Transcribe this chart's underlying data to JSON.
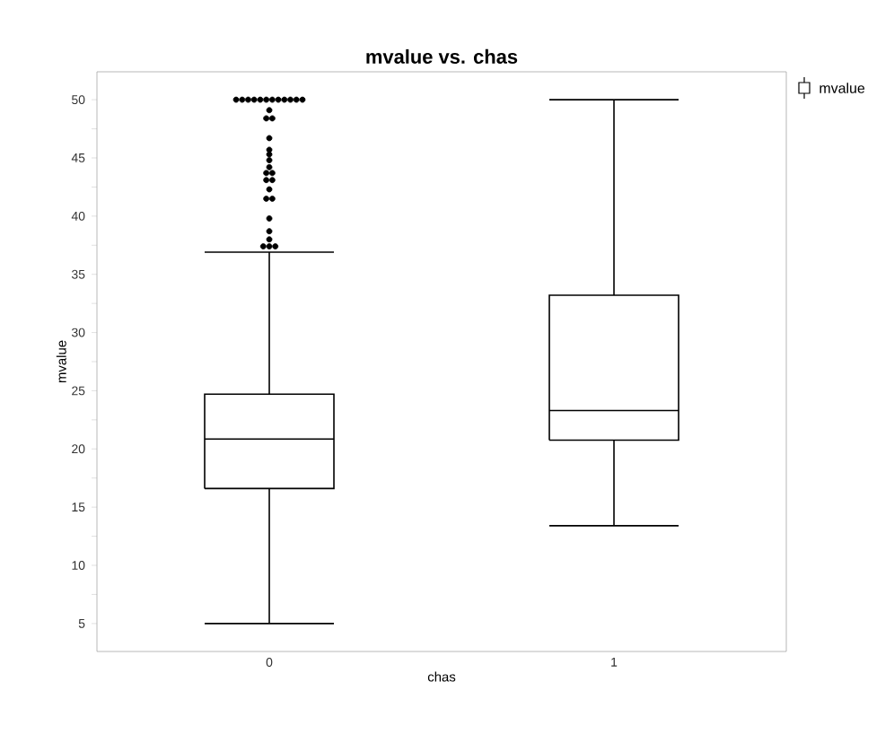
{
  "chart_data": {
    "type": "box",
    "title": "mvalue vs. chas",
    "xlabel": "chas",
    "ylabel": "mvalue",
    "categories": [
      "0",
      "1"
    ],
    "series": [
      {
        "name": "mvalue",
        "color": "#000000",
        "boxes": [
          {
            "low": 5,
            "q1": 16.6,
            "median": 20.85,
            "q3": 24.7,
            "high": 36.9,
            "outliers": [
              50,
              50,
              50,
              50,
              50,
              50,
              50,
              50,
              50,
              50,
              50,
              50,
              49.1,
              48.4,
              48.4,
              46.7,
              45.7,
              45.3,
              44.8,
              44.2,
              43.7,
              43.7,
              43.1,
              43.1,
              42.3,
              41.5,
              41.5,
              39.8,
              38.7,
              38.0,
              37.4,
              37.4,
              37.4
            ]
          },
          {
            "low": 13.4,
            "q1": 20.75,
            "median": 23.3,
            "q3": 33.2,
            "high": 50
          }
        ]
      }
    ],
    "ylim": [
      2.6,
      52.4
    ],
    "yticks": [
      5,
      {
        "value": 7.5,
        "label": null
      },
      10,
      {
        "value": 12.5,
        "label": null
      },
      15,
      {
        "value": 17.5,
        "label": null
      },
      20,
      {
        "value": 22.5,
        "label": null
      },
      25,
      {
        "value": 27.5,
        "label": null
      },
      30,
      {
        "value": 32.5,
        "label": null
      },
      35,
      {
        "value": 37.5,
        "label": null
      },
      40,
      {
        "value": 42.5,
        "label": null
      },
      45,
      {
        "value": 47.5,
        "label": null
      },
      50
    ],
    "legend": "top right",
    "grid": false
  }
}
